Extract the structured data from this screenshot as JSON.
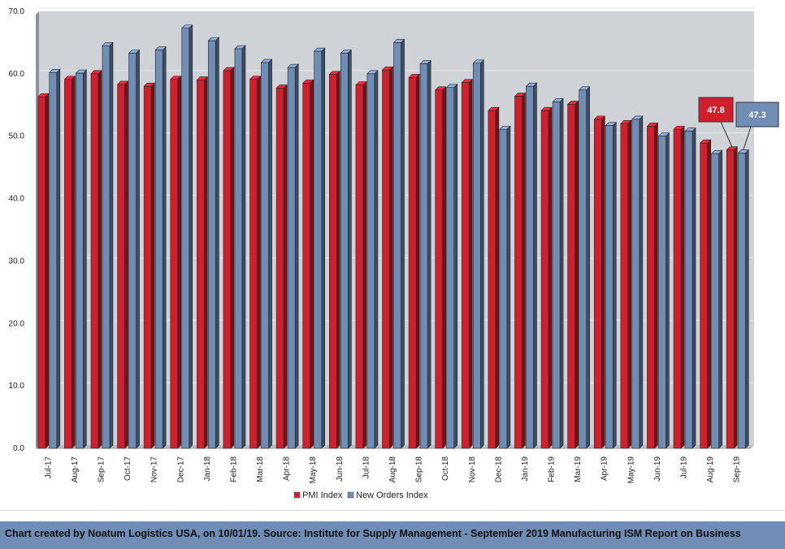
{
  "chart_data": {
    "type": "bar",
    "categories": [
      "Jul-17",
      "Aug-17",
      "Sep-17",
      "Oct-17",
      "Nov-17",
      "Dec-17",
      "Jan-18",
      "Feb-18",
      "Mar-18",
      "Apr-18",
      "May-18",
      "Jun-18",
      "Jul-18",
      "Aug-18",
      "Sep-18",
      "Oct-18",
      "Nov-18",
      "Dec-18",
      "Jan-19",
      "Feb-19",
      "Mar-19",
      "Apr-19",
      "May-19",
      "Jun-19",
      "Jul-19",
      "Aug-19",
      "Sep-19"
    ],
    "series": [
      {
        "name": "PMI Index",
        "color": "#d0202e",
        "values": [
          56.3,
          59.1,
          60.0,
          58.3,
          58.0,
          59.1,
          59.0,
          60.5,
          59.1,
          57.7,
          58.5,
          59.9,
          58.2,
          60.6,
          59.4,
          57.4,
          58.6,
          54.1,
          56.4,
          54.1,
          55.1,
          52.7,
          52.0,
          51.6,
          51.1,
          48.9,
          47.8
        ]
      },
      {
        "name": "New Orders Index",
        "color": "#6f8db5",
        "values": [
          60.2,
          60.1,
          64.5,
          63.3,
          63.8,
          67.3,
          65.3,
          64.0,
          61.8,
          61.0,
          63.6,
          63.3,
          60.0,
          65.0,
          61.6,
          57.8,
          61.7,
          51.1,
          58.0,
          55.5,
          57.4,
          51.7,
          52.7,
          50.0,
          50.8,
          47.2,
          47.3
        ]
      }
    ],
    "ylim": [
      0,
      70
    ],
    "yticks": [
      "0.0",
      "10.0",
      "20.0",
      "30.0",
      "40.0",
      "50.0",
      "60.0",
      "70.0"
    ],
    "grid": true,
    "legend_position": "bottom",
    "annotations": [
      {
        "label": "47.8",
        "series": "PMI Index",
        "category": "Sep-19",
        "color": "#d0202e"
      },
      {
        "label": "47.3",
        "series": "New Orders Index",
        "category": "Sep-19",
        "color": "#6f8db5"
      }
    ]
  },
  "colors": {
    "plot_background": "#cfd2d6",
    "grid": "#e6e8ea",
    "footer_background": "#6f8db5"
  },
  "footer": {
    "text": "Chart created by Noatum Logistics USA, on 10/01/19. Source: Institute for Supply Management - September 2019 Manufacturing ISM Report on Business"
  }
}
